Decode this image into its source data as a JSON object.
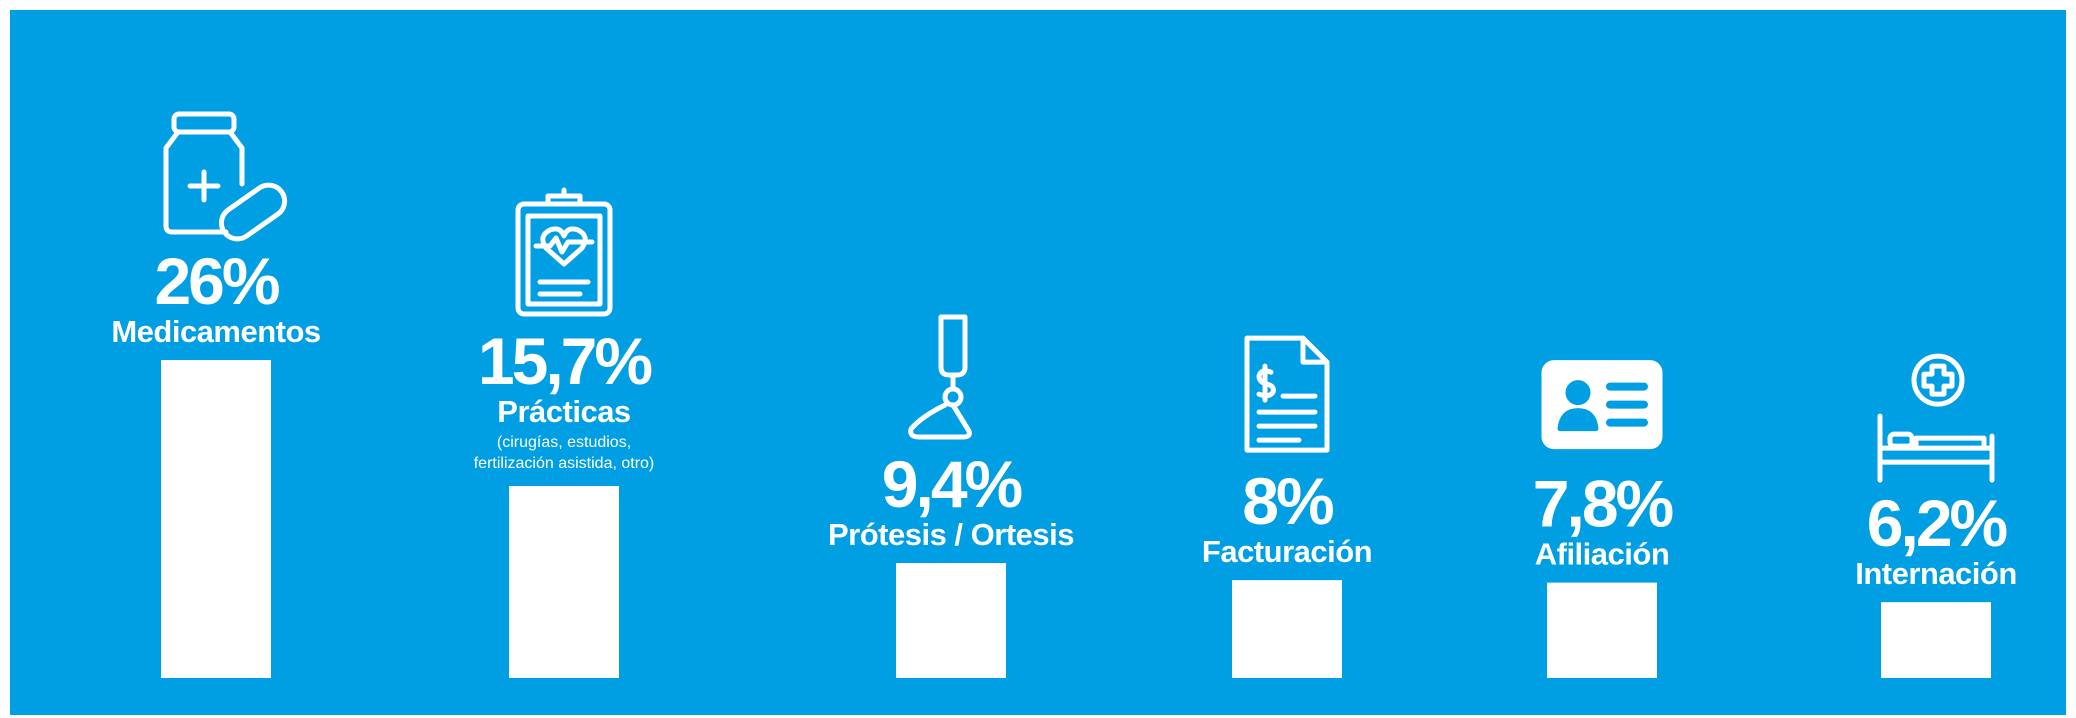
{
  "chart_data": {
    "type": "bar",
    "categories": [
      "Medicamentos",
      "Prácticas",
      "Prótesis / Ortesis",
      "Facturación",
      "Afiliación",
      "Internación"
    ],
    "category_notes": [
      null,
      [
        "(cirugías, estudios,",
        "fertilización asistida, otro)"
      ],
      null,
      null,
      null,
      null
    ],
    "values": [
      26,
      15.7,
      9.4,
      8,
      7.8,
      6.2
    ],
    "value_labels": [
      "26%",
      "15,7%",
      "9,4%",
      "8%",
      "7,8%",
      "6,2%"
    ],
    "color": "#ffffff",
    "background": "#009fe3"
  }
}
